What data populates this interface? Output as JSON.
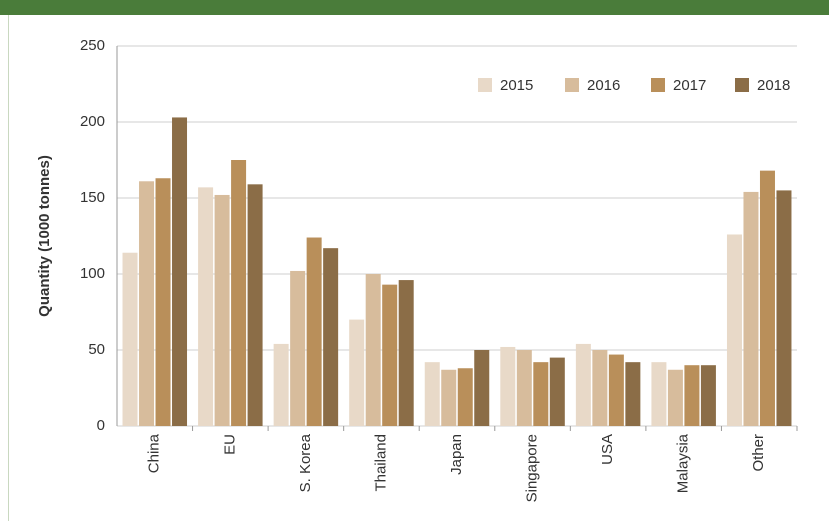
{
  "chart_data": {
    "type": "bar",
    "y_label": "Quantity (1000 tonnes)",
    "categories": [
      "China",
      "EU",
      "S. Korea",
      "Thailand",
      "Japan",
      "Singapore",
      "USA",
      "Malaysia",
      "Other"
    ],
    "series": [
      {
        "name": "2015",
        "color": "#e8d9c8",
        "values": [
          114,
          157,
          54,
          70,
          42,
          52,
          54,
          42,
          126
        ]
      },
      {
        "name": "2016",
        "color": "#d7bc9c",
        "values": [
          161,
          152,
          102,
          100,
          37,
          50,
          50,
          37,
          154
        ]
      },
      {
        "name": "2017",
        "color": "#b98f5a",
        "values": [
          163,
          175,
          124,
          93,
          38,
          42,
          47,
          40,
          168
        ]
      },
      {
        "name": "2018",
        "color": "#8b6d47",
        "values": [
          203,
          159,
          117,
          96,
          50,
          45,
          42,
          40,
          155
        ]
      }
    ],
    "ylim": [
      0,
      250
    ],
    "yticks": [
      0,
      50,
      100,
      150,
      200,
      250
    ],
    "grid": true,
    "legend": "top-right"
  }
}
